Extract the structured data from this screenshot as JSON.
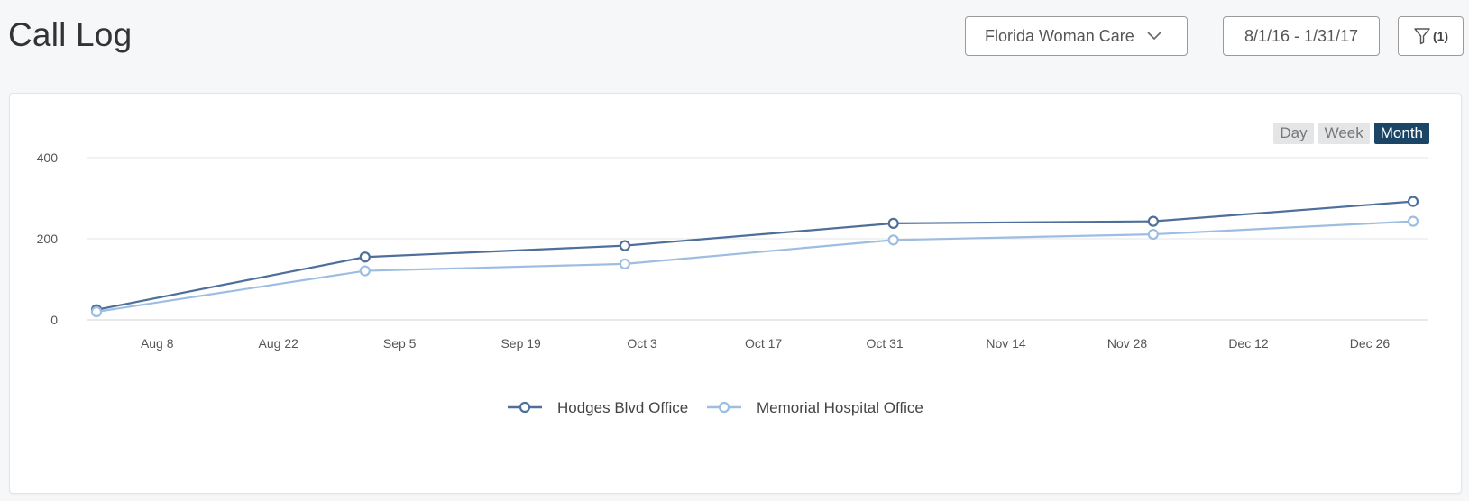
{
  "header": {
    "title": "Call Log",
    "practice_select": "Florida Woman Care",
    "date_range": "8/1/16 - 1/31/17",
    "filter_count": "(1)"
  },
  "granularity": {
    "options": [
      "Day",
      "Week",
      "Month"
    ],
    "selected": "Month"
  },
  "chart_data": {
    "type": "line",
    "x_ticks": [
      "Aug 8",
      "Aug 22",
      "Sep 5",
      "Sep 19",
      "Oct 3",
      "Oct 17",
      "Oct 31",
      "Nov 14",
      "Nov 28",
      "Dec 12",
      "Dec 26"
    ],
    "y_ticks": [
      0,
      200,
      400
    ],
    "ylim": [
      0,
      400
    ],
    "x_domain": [
      "2016-08-01",
      "2016-12-31"
    ],
    "legend_position": "bottom-center",
    "grid": true,
    "x": [
      "2016-08-01",
      "2016-09-01",
      "2016-10-01",
      "2016-11-01",
      "2016-12-01",
      "2016-12-31"
    ],
    "series": [
      {
        "name": "Hodges Blvd Office",
        "color": "#4e6f9a",
        "values": [
          25,
          155,
          183,
          238,
          243,
          292
        ]
      },
      {
        "name": "Memorial Hospital Office",
        "color": "#9dbde3",
        "values": [
          20,
          121,
          138,
          197,
          211,
          243
        ]
      }
    ]
  }
}
